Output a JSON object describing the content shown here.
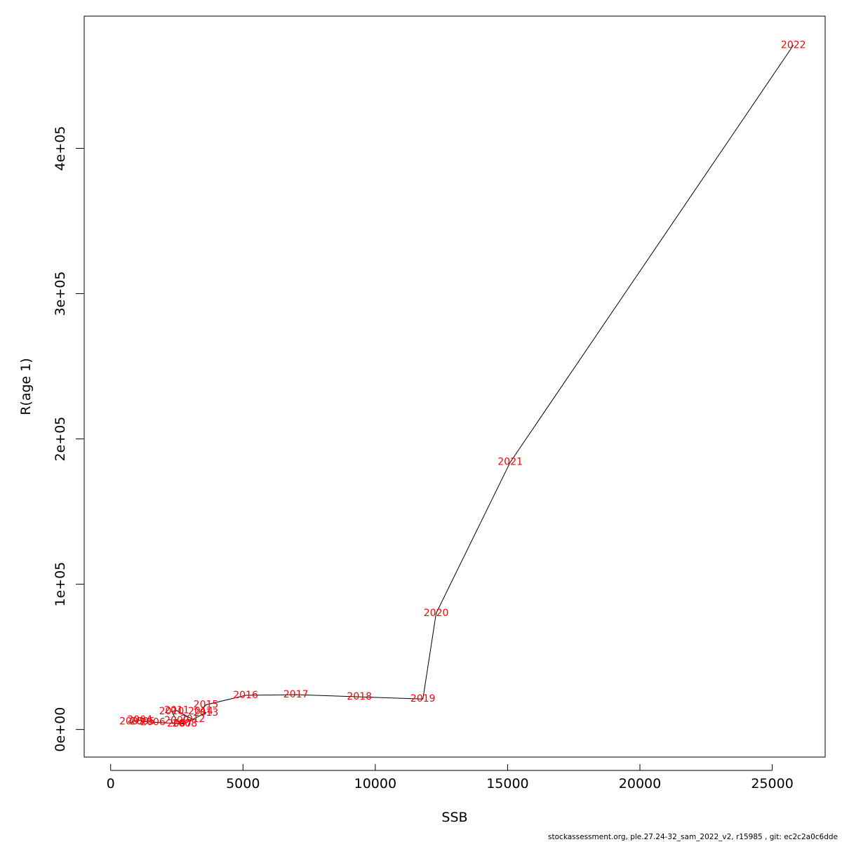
{
  "chart_data": {
    "type": "line",
    "title": "",
    "xlabel": "SSB",
    "ylabel": "R(age 1)",
    "xlim": [
      -1000,
      27000
    ],
    "ylim": [
      -19000,
      491000
    ],
    "xticks": [
      0,
      5000,
      10000,
      15000,
      20000,
      25000
    ],
    "xtick_labels": [
      "0",
      "5000",
      "10000",
      "15000",
      "20000",
      "25000"
    ],
    "yticks": [
      0,
      100000,
      200000,
      300000,
      400000
    ],
    "ytick_labels": [
      "0e+00",
      "1e+05",
      "2e+05",
      "3e+05",
      "4e+05"
    ],
    "grid": false,
    "line_color": "#000000",
    "label_color": "#ff0000",
    "points": [
      {
        "label": "2003",
        "x": 800,
        "y": 5500
      },
      {
        "label": "2004",
        "x": 1100,
        "y": 6500
      },
      {
        "label": "2005",
        "x": 1200,
        "y": 5500
      },
      {
        "label": "2006",
        "x": 1600,
        "y": 5000
      },
      {
        "label": "2007",
        "x": 2600,
        "y": 4000
      },
      {
        "label": "2008",
        "x": 2800,
        "y": 4000
      },
      {
        "label": "2009",
        "x": 2500,
        "y": 6000
      },
      {
        "label": "2010",
        "x": 2300,
        "y": 12500
      },
      {
        "label": "2011",
        "x": 2500,
        "y": 13000
      },
      {
        "label": "2012",
        "x": 3100,
        "y": 7000
      },
      {
        "label": "2013",
        "x": 3600,
        "y": 11500
      },
      {
        "label": "2014",
        "x": 3400,
        "y": 12500
      },
      {
        "label": "2015",
        "x": 3600,
        "y": 17000
      },
      {
        "label": "2016",
        "x": 5100,
        "y": 23500
      },
      {
        "label": "2017",
        "x": 7000,
        "y": 24000
      },
      {
        "label": "2018",
        "x": 9400,
        "y": 22500
      },
      {
        "label": "2019",
        "x": 11800,
        "y": 21000
      },
      {
        "label": "2020",
        "x": 12300,
        "y": 80000
      },
      {
        "label": "2021",
        "x": 15100,
        "y": 184000
      },
      {
        "label": "2022",
        "x": 25800,
        "y": 471000
      }
    ]
  },
  "footer": "stockassessment.org, ple.27.24-32_sam_2022_v2, r15985 , git: ec2c2a0c6dde"
}
